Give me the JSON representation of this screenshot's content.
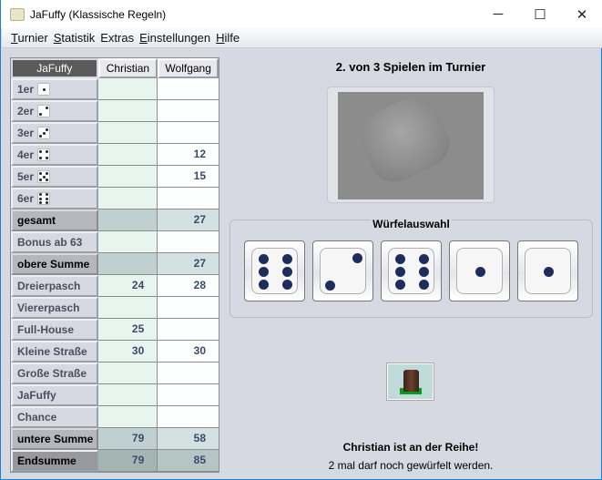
{
  "window": {
    "title": "JaFuffy (Klassische Regeln)",
    "minimize": "─",
    "maximize": "☐",
    "close": "✕"
  },
  "menu": [
    {
      "label": "Turnier",
      "mnemonic": "T",
      "rest": "urnier"
    },
    {
      "label": "Statistik",
      "mnemonic": "S",
      "rest": "tatistik"
    },
    {
      "label": "Extras",
      "mnemonic": "E",
      "pre": "",
      "rest": "xtras"
    },
    {
      "label": "Einstellungen",
      "mnemonic": "E",
      "rest": "instellungen"
    },
    {
      "label": "Hilfe",
      "mnemonic": "H",
      "rest": "ilfe"
    }
  ],
  "table": {
    "header": [
      "JaFuffy",
      "Christian",
      "Wolfgang"
    ],
    "rows": [
      {
        "label": "1er",
        "die": 1,
        "christian": "",
        "wolfgang": ""
      },
      {
        "label": "2er",
        "die": 2,
        "christian": "",
        "wolfgang": ""
      },
      {
        "label": "3er",
        "die": 3,
        "christian": "",
        "wolfgang": ""
      },
      {
        "label": "4er",
        "die": 4,
        "christian": "",
        "wolfgang": "12"
      },
      {
        "label": "5er",
        "die": 5,
        "christian": "",
        "wolfgang": "15"
      },
      {
        "label": "6er",
        "die": 6,
        "christian": "",
        "wolfgang": ""
      },
      {
        "label": "gesamt",
        "type": "sum",
        "christian": "",
        "wolfgang": "27"
      },
      {
        "label": "Bonus ab 63",
        "christian": "",
        "wolfgang": ""
      },
      {
        "label": "obere Summe",
        "type": "sum",
        "christian": "",
        "wolfgang": "27"
      },
      {
        "label": "Dreierpasch",
        "christian": "24",
        "wolfgang": "28"
      },
      {
        "label": "Viererpasch",
        "christian": "",
        "wolfgang": ""
      },
      {
        "label": "Full-House",
        "christian": "25",
        "wolfgang": ""
      },
      {
        "label": "Kleine Straße",
        "christian": "30",
        "wolfgang": "30"
      },
      {
        "label": "Große Straße",
        "christian": "",
        "wolfgang": ""
      },
      {
        "label": "JaFuffy",
        "christian": "",
        "wolfgang": ""
      },
      {
        "label": "Chance",
        "christian": "",
        "wolfgang": ""
      },
      {
        "label": "untere Summe",
        "type": "sum",
        "christian": "79",
        "wolfgang": "58"
      },
      {
        "label": "Endsumme",
        "type": "end",
        "christian": "79",
        "wolfgang": "85"
      }
    ]
  },
  "main": {
    "heading": "2. von 3 Spielen im Turnier",
    "dice_panel_title": "Würfelauswahl",
    "dice": [
      6,
      2,
      6,
      1,
      1
    ],
    "status_turn": "Christian ist an der Reihe!",
    "status_rolls": "2 mal darf noch gewürfelt werden."
  },
  "colors": {
    "accent": "#1883d7",
    "pip": "#1f2d5c",
    "number": "#3a4a6e"
  }
}
